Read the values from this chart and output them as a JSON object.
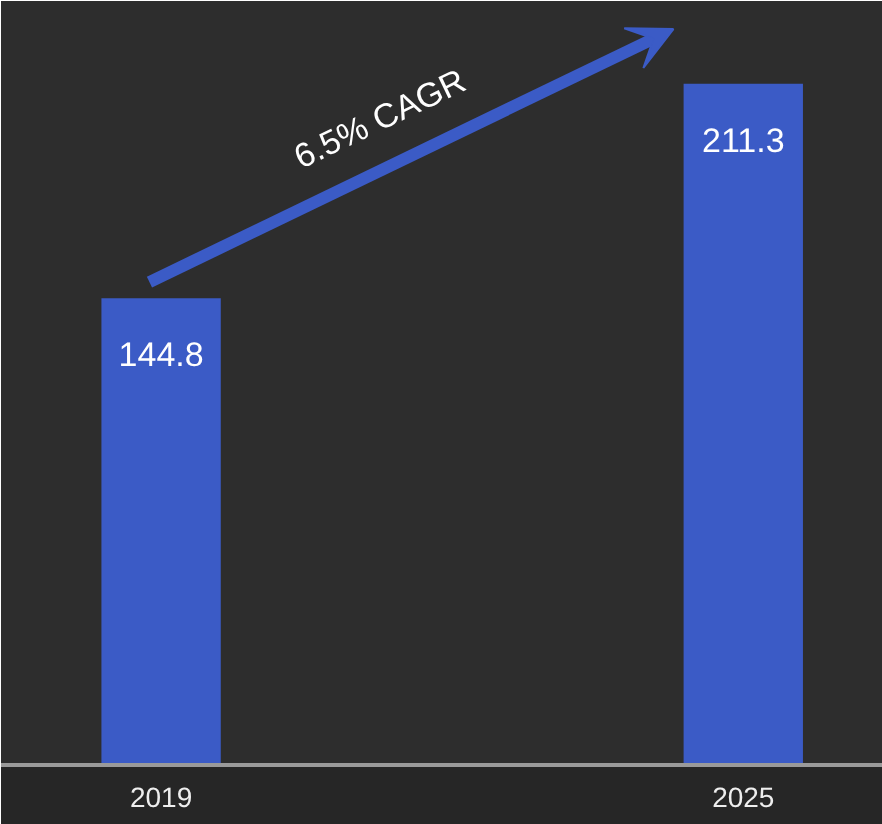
{
  "chart_data": {
    "type": "bar",
    "categories": [
      "2019",
      "2025"
    ],
    "values": [
      144.8,
      211.3
    ],
    "color": "#3b5bc6",
    "ylim": [
      0,
      237
    ],
    "data_labels": true,
    "grid": false,
    "tick_labels": "x",
    "annotations": [
      "6.5% CAGR"
    ]
  }
}
